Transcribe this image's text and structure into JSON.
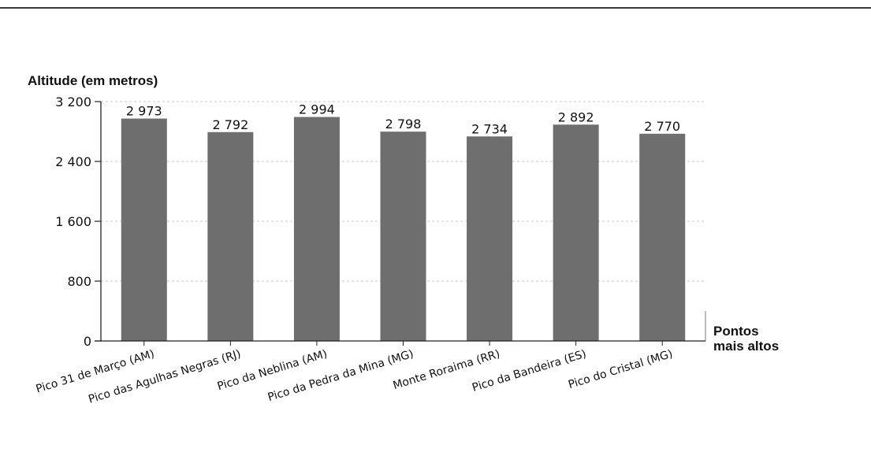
{
  "chart_data": {
    "type": "bar",
    "ylabel": "Altitude (em metros)",
    "xlabel": [
      "Pontos",
      "mais altos"
    ],
    "categories": [
      "Pico 31 de Março (AM)",
      "Pico das Agulhas Negras (RJ)",
      "Pico da Neblina (AM)",
      "Pico da Pedra da Mina (MG)",
      "Monte Roraima (RR)",
      "Pico da Bandeira (ES)",
      "Pico do Cristal (MG)"
    ],
    "values": [
      2973,
      2792,
      2994,
      2798,
      2734,
      2892,
      2770
    ],
    "value_labels": [
      "2 973",
      "2 792",
      "2 994",
      "2 798",
      "2 734",
      "2 892",
      "2 770"
    ],
    "ylim": [
      0,
      3200
    ],
    "yticks": [
      0,
      800,
      1600,
      2400,
      3200
    ],
    "ytick_labels": [
      "0",
      "800",
      "1 600",
      "2 400",
      "3 200"
    ],
    "grid": true,
    "bar_color": "#6e6e6e"
  }
}
